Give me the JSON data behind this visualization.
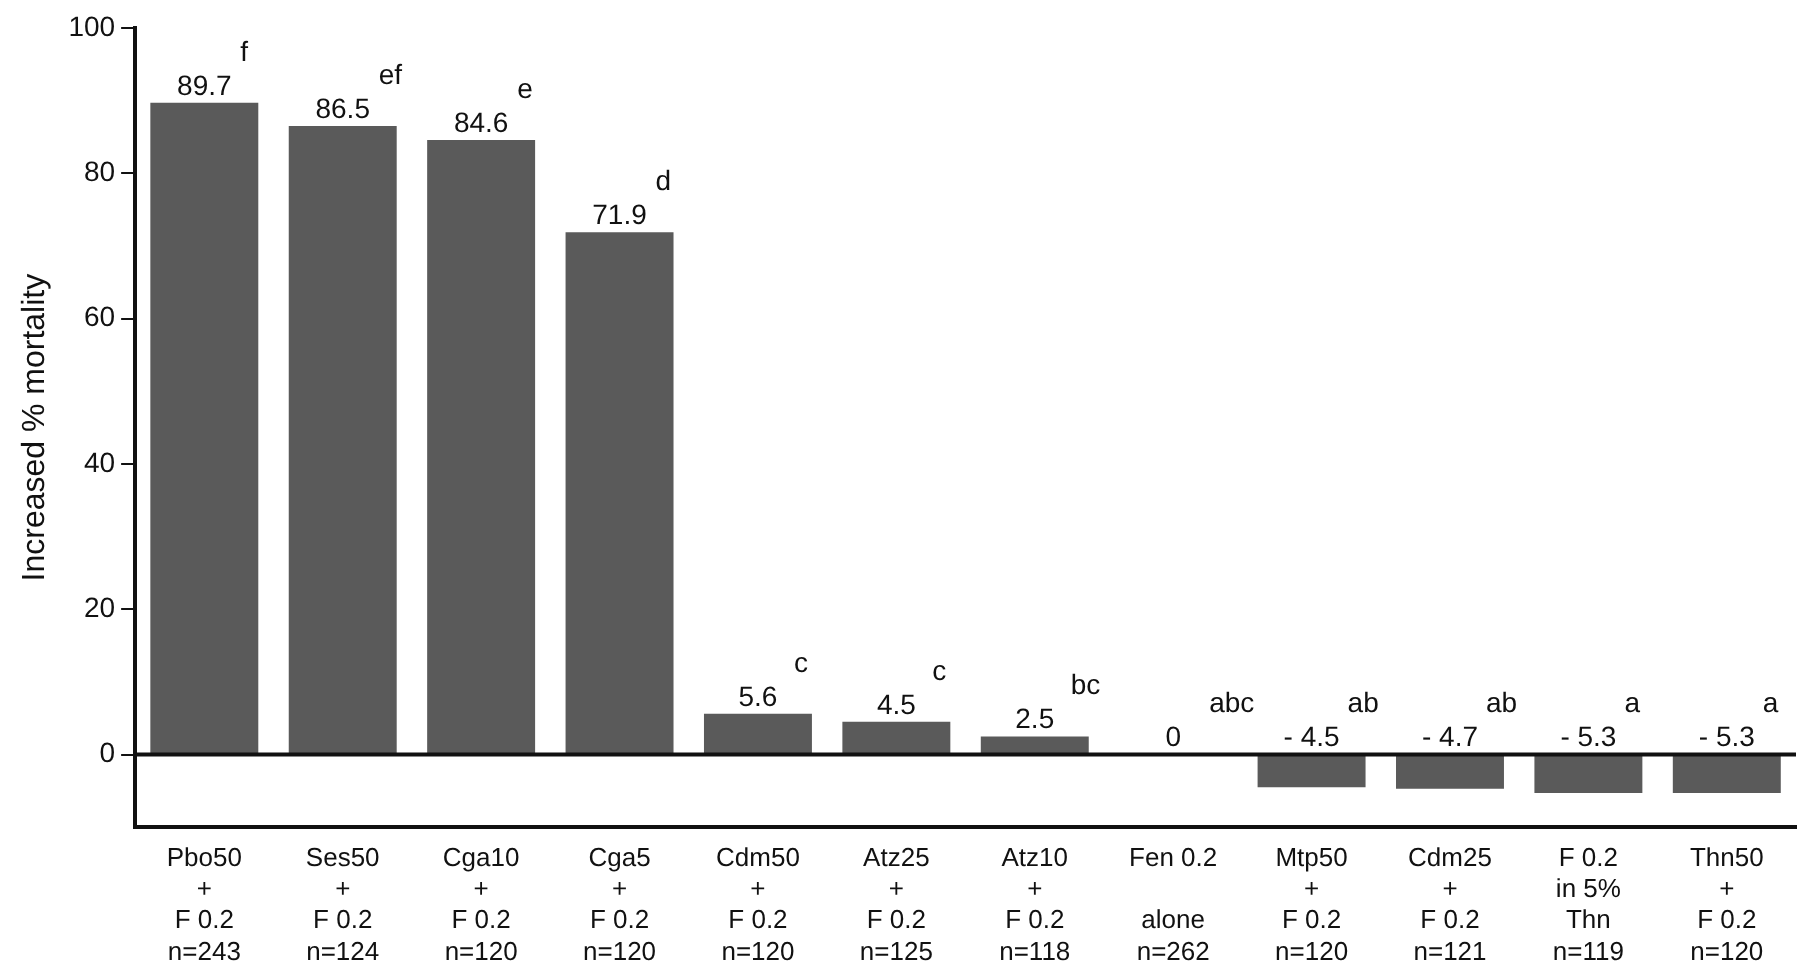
{
  "chart_data": {
    "type": "bar",
    "ylabel": "Increased % mortality",
    "categories": [
      "Pbo50\n+\nF 0.2\nn=243",
      "Ses50\n+\nF 0.2\nn=124",
      "Cga10\n+\nF 0.2\nn=120",
      "Cga5\n+\nF 0.2\nn=120",
      "Cdm50\n+\nF 0.2\nn=120",
      "Atz25\n+\nF 0.2\nn=125",
      "Atz10\n+\nF 0.2\nn=118",
      "Fen 0.2\n\nalone\nn=262",
      "Mtp50\n+\nF 0.2\nn=120",
      "Cdm25\n+\nF 0.2\nn=121",
      "F 0.2\nin 5%\nThn\nn=119",
      "Thn50\n+\nF 0.2\nn=120"
    ],
    "values": [
      89.7,
      86.5,
      84.6,
      71.9,
      5.6,
      4.5,
      2.5,
      0,
      -4.5,
      -4.7,
      -5.3,
      -5.3
    ],
    "value_labels": [
      "89.7",
      "86.5",
      "84.6",
      "71.9",
      "5.6",
      "4.5",
      "2.5",
      "0",
      "- 4.5",
      "- 4.7",
      "- 5.3",
      "- 5.3"
    ],
    "color": "#5a5a5a",
    "ylim": [
      -10,
      100
    ],
    "yticks": [
      0,
      20,
      40,
      60,
      80,
      100
    ],
    "grid": false,
    "ref_lines": [
      {
        "axis": "y",
        "value": 0,
        "color": "#111111"
      }
    ],
    "annotations": [
      {
        "text": "f",
        "x": "Pbo50\n+\nF 0.2\nn=243",
        "y": 89.7
      },
      {
        "text": "ef",
        "x": "Ses50\n+\nF 0.2\nn=124",
        "y": 86.5
      },
      {
        "text": "e",
        "x": "Cga10\n+\nF 0.2\nn=120",
        "y": 84.6
      },
      {
        "text": "d",
        "x": "Cga5\n+\nF 0.2\nn=120",
        "y": 71.9
      },
      {
        "text": "c",
        "x": "Cdm50\n+\nF 0.2\nn=120",
        "y": 5.6
      },
      {
        "text": "c",
        "x": "Atz25\n+\nF 0.2\nn=125",
        "y": 4.5
      },
      {
        "text": "bc",
        "x": "Atz10\n+\nF 0.2\nn=118",
        "y": 2.5
      },
      {
        "text": "abc",
        "x": "Fen 0.2\n\nalone\nn=262",
        "y": 0
      },
      {
        "text": "ab",
        "x": "Mtp50\n+\nF 0.2\nn=120",
        "y": -4.5
      },
      {
        "text": "ab",
        "x": "Cdm25\n+\nF 0.2\nn=121",
        "y": -4.7
      },
      {
        "text": "a",
        "x": "F 0.2\nin 5%\nThn\nn=119",
        "y": -5.3
      },
      {
        "text": "a",
        "x": "Thn50\n+\nF 0.2\nn=120",
        "y": -5.3
      }
    ]
  }
}
